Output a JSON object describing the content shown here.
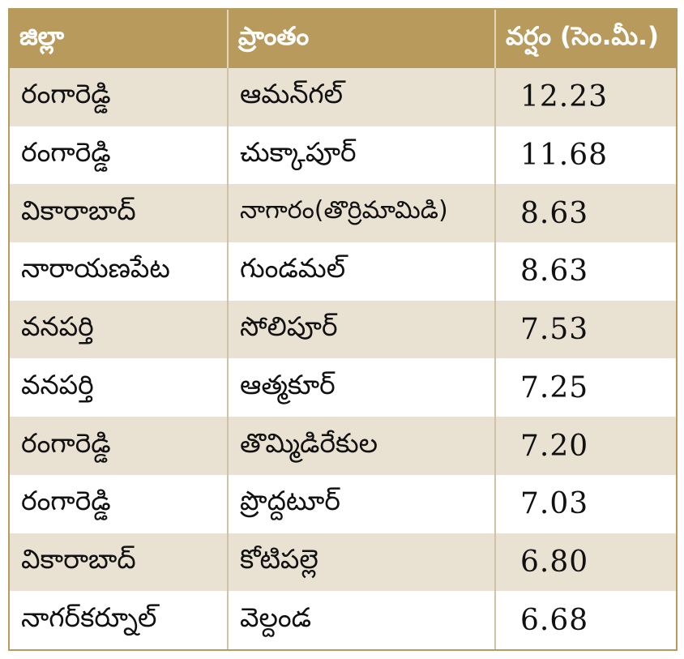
{
  "table": {
    "headers": {
      "district": "జిల్లా",
      "area": "ప్రాంతం",
      "rainfall": "వర్షం (సెం.మీ.)"
    },
    "rows": [
      {
        "district": "రంగారెడ్డి",
        "area": "ఆమన్‌గల్‌",
        "rainfall": "12.23"
      },
      {
        "district": "రంగారెడ్డి",
        "area": "చుక్కాపూర్‌",
        "rainfall": "11.68"
      },
      {
        "district": "వికారాబాద్‌",
        "area": "నాగారం(తొర్రిమామిడి)",
        "rainfall": "8.63"
      },
      {
        "district": "నారాయణపేట",
        "area": "గుండమల్‌",
        "rainfall": "8.63"
      },
      {
        "district": "వనపర్తి",
        "area": "సోలిపూర్‌",
        "rainfall": "7.53"
      },
      {
        "district": "వనపర్తి",
        "area": "ఆత్మకూర్‌",
        "rainfall": "7.25"
      },
      {
        "district": "రంగారెడ్డి",
        "area": "తొమ్మిడిరేకుల",
        "rainfall": "7.20"
      },
      {
        "district": "రంగారెడ్డి",
        "area": "ప్రొద్దటూర్‌",
        "rainfall": "7.03"
      },
      {
        "district": "వికారాబాద్‌",
        "area": "కోటిపల్లె",
        "rainfall": "6.80"
      },
      {
        "district": "నాగర్‌కర్నూల్‌",
        "area": "వెల్దండ",
        "rainfall": "6.68"
      }
    ]
  },
  "colors": {
    "header_background": "#b89a5c",
    "shaded_row": "#e9e1d2",
    "border": "#b89a5c"
  }
}
